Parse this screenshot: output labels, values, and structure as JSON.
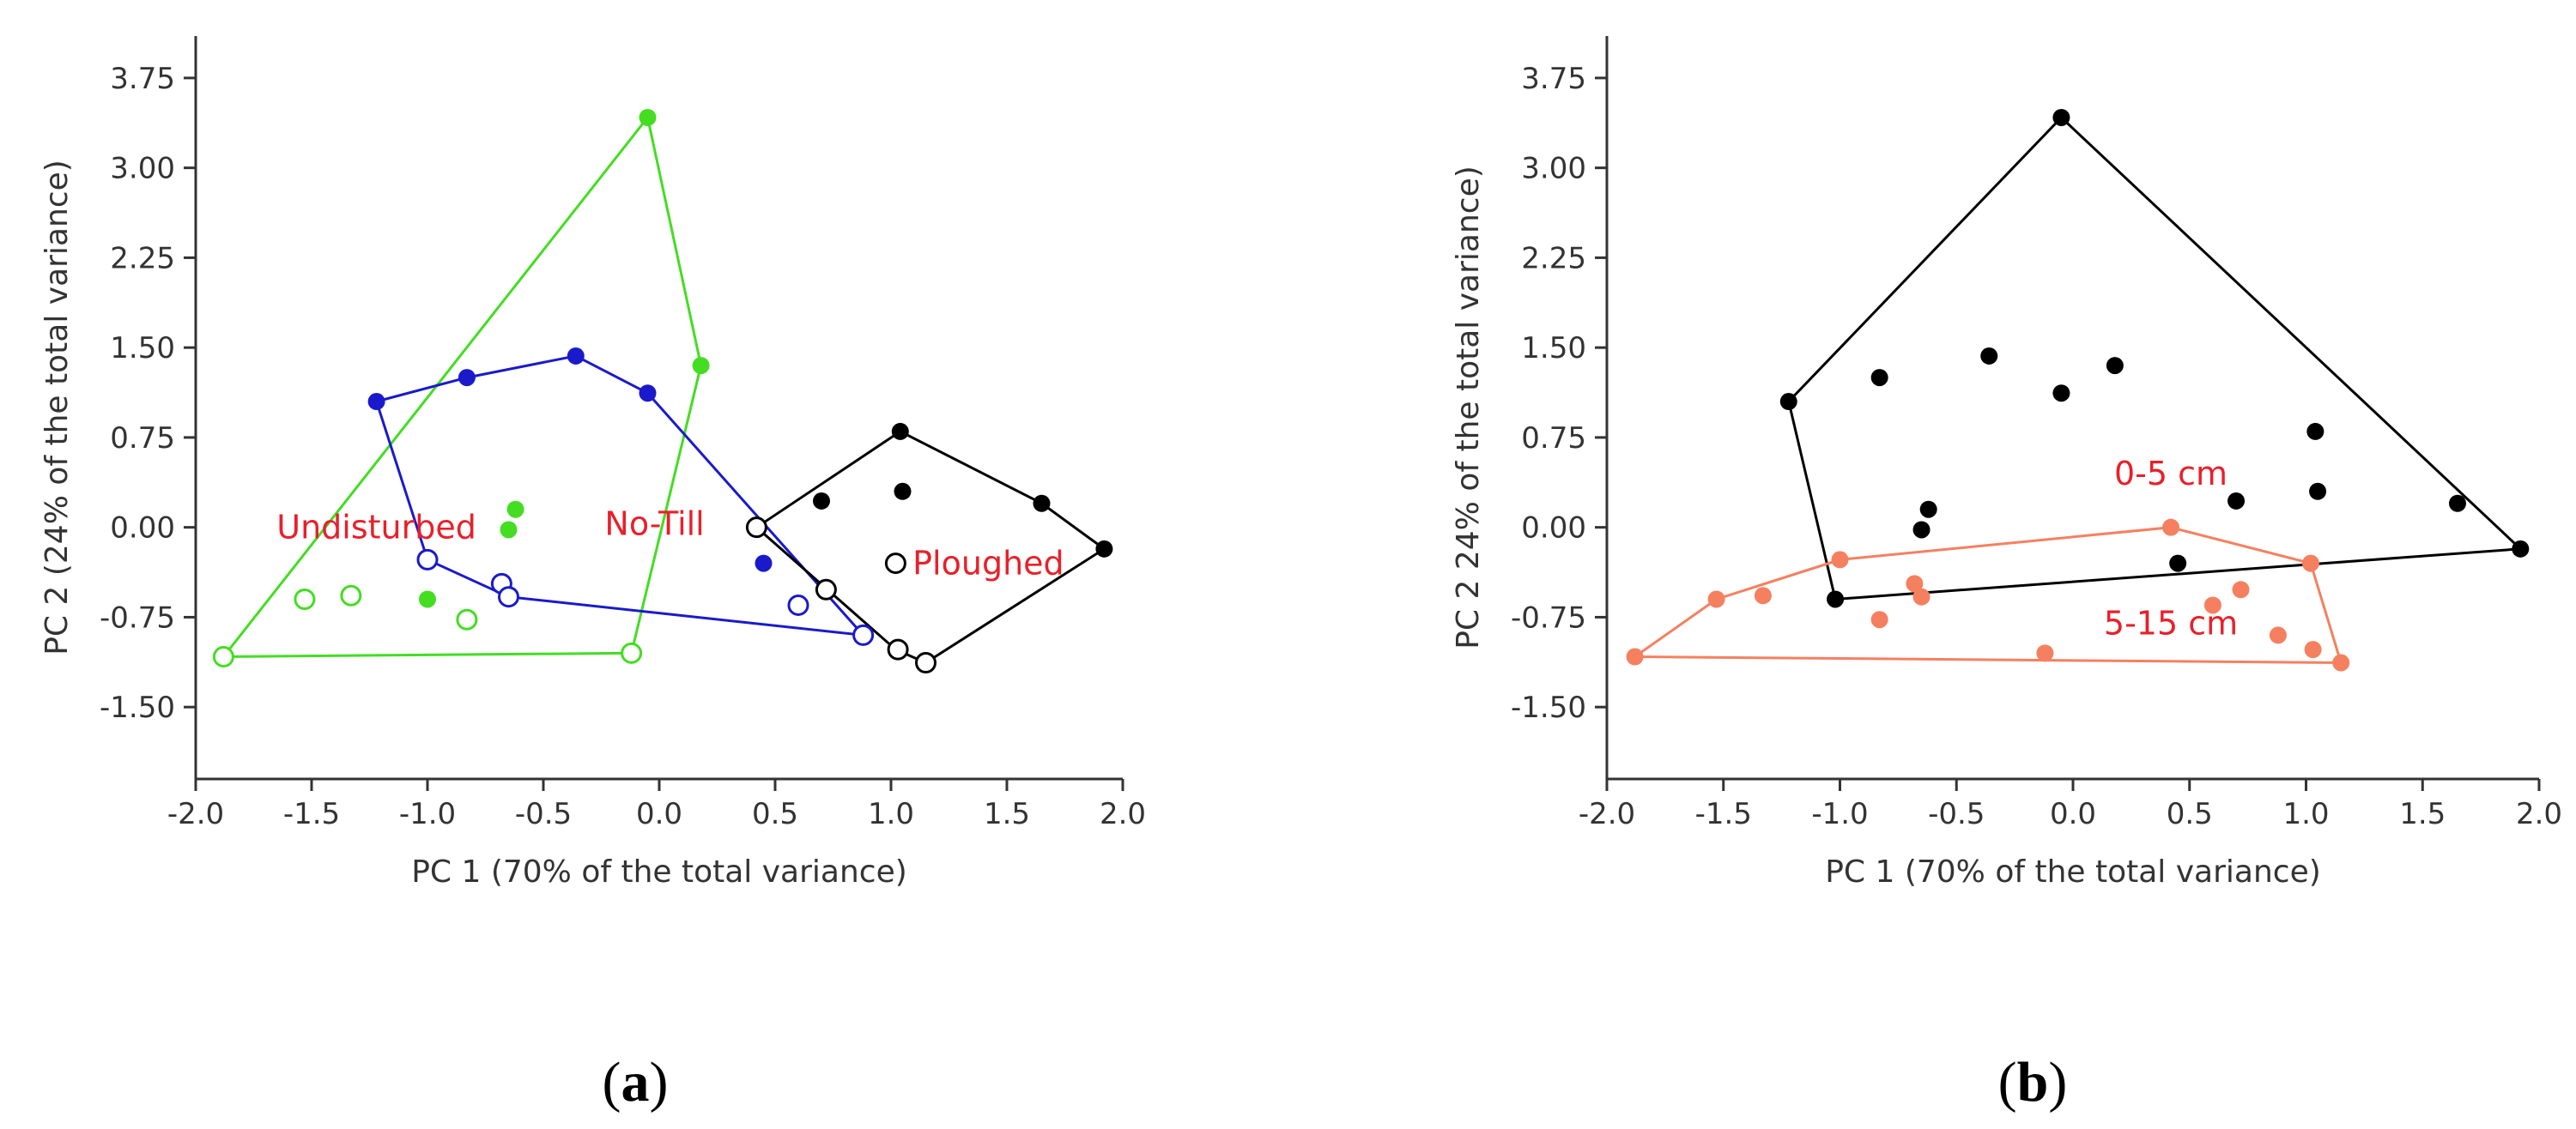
{
  "colors": {
    "undisturbed": "#44DD22",
    "no_till": "#1A1ACC",
    "ploughed": "#000000",
    "depth_0_5": "#000000",
    "depth_5_15": "#F58060",
    "annotation": "#E8202A",
    "axis": "#333333"
  },
  "chart_data": [
    {
      "type": "scatter",
      "panel": "a",
      "panel_label": "a",
      "xlabel": "PC 1 (70% of the total variance)",
      "ylabel": "PC 2 (24% of the total variance)",
      "xlim": [
        -2.0,
        2.0
      ],
      "ylim": [
        -2.1,
        4.1
      ],
      "xticks": [
        -2.0,
        -1.5,
        -1.0,
        -0.5,
        0.0,
        0.5,
        1.0,
        1.5,
        2.0
      ],
      "xtick_labels": [
        "-2.0",
        "-1.5",
        "-1.0",
        "-0.5",
        "0.0",
        "0.5",
        "1.0",
        "1.5",
        "2.0"
      ],
      "yticks": [
        3.75,
        3.0,
        2.25,
        1.5,
        0.75,
        0.0,
        -0.75,
        -1.5
      ],
      "ytick_labels": [
        "3.75",
        "3.00",
        "2.25",
        "1.50",
        "0.75",
        "0.00",
        "-0.75",
        "-1.50"
      ],
      "annotations": [
        {
          "text": "Undisturbed",
          "x": -1.22,
          "y": 0.0
        },
        {
          "text": "No-Till",
          "x": -0.02,
          "y": 0.03
        },
        {
          "text": "Ploughed",
          "x": 1.42,
          "y": -0.3
        }
      ],
      "hulls": [
        {
          "name": "Undisturbed",
          "color_key": "undisturbed",
          "points": [
            [
              -0.05,
              3.42
            ],
            [
              0.18,
              1.35
            ],
            [
              -0.12,
              -1.05
            ],
            [
              -1.88,
              -1.08
            ]
          ]
        },
        {
          "name": "No-Till",
          "color_key": "no_till",
          "points": [
            [
              -1.22,
              1.05
            ],
            [
              -0.83,
              1.25
            ],
            [
              -0.36,
              1.43
            ],
            [
              -0.05,
              1.12
            ],
            [
              0.88,
              -0.9
            ],
            [
              -0.65,
              -0.58
            ],
            [
              -1.0,
              -0.27
            ]
          ]
        },
        {
          "name": "Ploughed",
          "color_key": "ploughed",
          "points": [
            [
              0.42,
              0.0
            ],
            [
              1.04,
              0.8
            ],
            [
              1.65,
              0.2
            ],
            [
              1.92,
              -0.18
            ],
            [
              1.15,
              -1.13
            ],
            [
              1.02,
              -1.02
            ]
          ]
        }
      ],
      "series": [
        {
          "name": "Undisturbed 0-5 cm",
          "color_key": "undisturbed",
          "marker": "filled",
          "x": [
            -0.05,
            0.18,
            -0.62,
            -0.65,
            -1.0
          ],
          "y": [
            3.42,
            1.35,
            0.15,
            -0.02,
            -0.6
          ]
        },
        {
          "name": "Undisturbed 5-15 cm",
          "color_key": "undisturbed",
          "marker": "open",
          "x": [
            -1.88,
            -1.53,
            -1.33,
            -0.83,
            -0.12
          ],
          "y": [
            -1.08,
            -0.6,
            -0.57,
            -0.77,
            -1.05
          ]
        },
        {
          "name": "No-Till 0-5 cm",
          "color_key": "no_till",
          "marker": "filled",
          "x": [
            -1.22,
            -0.83,
            -0.36,
            -0.05,
            0.45
          ],
          "y": [
            1.05,
            1.25,
            1.43,
            1.12,
            -0.3
          ]
        },
        {
          "name": "No-Till 5-15 cm",
          "color_key": "no_till",
          "marker": "open",
          "x": [
            -1.0,
            -0.68,
            -0.65,
            0.6,
            0.88
          ],
          "y": [
            -0.27,
            -0.47,
            -0.58,
            -0.65,
            -0.9
          ]
        },
        {
          "name": "Ploughed 0-5 cm",
          "color_key": "ploughed",
          "marker": "filled",
          "x": [
            0.7,
            1.04,
            1.05,
            1.65,
            1.92
          ],
          "y": [
            0.22,
            0.8,
            0.3,
            0.2,
            -0.18
          ]
        },
        {
          "name": "Ploughed 5-15 cm",
          "color_key": "ploughed",
          "marker": "open",
          "x": [
            0.42,
            0.72,
            1.02,
            1.03,
            1.15
          ],
          "y": [
            0.0,
            -0.52,
            -0.3,
            -1.02,
            -1.13
          ]
        }
      ]
    },
    {
      "type": "scatter",
      "panel": "b",
      "panel_label": "b",
      "xlabel": "PC 1 (70% of the total variance)",
      "ylabel": "PC 2 24% of the total variance)",
      "xlim": [
        -2.0,
        2.0
      ],
      "ylim": [
        -2.1,
        4.1
      ],
      "xticks": [
        -2.0,
        -1.5,
        -1.0,
        -0.5,
        0.0,
        0.5,
        1.0,
        1.5,
        2.0
      ],
      "xtick_labels": [
        "-2.0",
        "-1.5",
        "-1.0",
        "-0.5",
        "0.0",
        "0.5",
        "1.0",
        "1.5",
        "2.0"
      ],
      "yticks": [
        3.75,
        3.0,
        2.25,
        1.5,
        0.75,
        0.0,
        -0.75,
        -1.5
      ],
      "ytick_labels": [
        "3.75",
        "3.00",
        "2.25",
        "1.50",
        "0.75",
        "0.00",
        "-0.75",
        "-1.50"
      ],
      "annotations": [
        {
          "text": "0-5 cm",
          "x": 0.42,
          "y": 0.45
        },
        {
          "text": "5-15 cm",
          "x": 0.42,
          "y": -0.8
        }
      ],
      "hulls": [
        {
          "name": "0-5 cm",
          "color_key": "depth_0_5",
          "points": [
            [
              -0.05,
              3.42
            ],
            [
              1.92,
              -0.18
            ],
            [
              -1.02,
              -0.6
            ],
            [
              -1.22,
              1.05
            ]
          ]
        },
        {
          "name": "5-15 cm",
          "color_key": "depth_5_15",
          "points": [
            [
              0.42,
              0.0
            ],
            [
              1.02,
              -0.3
            ],
            [
              1.15,
              -1.13
            ],
            [
              -1.88,
              -1.08
            ],
            [
              -1.53,
              -0.6
            ],
            [
              -1.0,
              -0.27
            ]
          ]
        }
      ],
      "series": [
        {
          "name": "0-5 cm",
          "color_key": "depth_0_5",
          "marker": "filled",
          "x": [
            -0.05,
            -1.22,
            -0.83,
            -0.36,
            -0.05,
            0.18,
            1.04,
            1.05,
            1.65,
            1.92,
            0.7,
            -0.62,
            -0.65,
            0.45,
            -1.02
          ],
          "y": [
            3.42,
            1.05,
            1.25,
            1.43,
            1.12,
            1.35,
            0.8,
            0.3,
            0.2,
            -0.18,
            0.22,
            0.15,
            -0.02,
            -0.3,
            -0.6
          ]
        },
        {
          "name": "5-15 cm",
          "color_key": "depth_5_15",
          "marker": "filled",
          "x": [
            0.42,
            -1.0,
            -1.53,
            -1.33,
            -0.68,
            -0.65,
            -0.83,
            -1.88,
            -0.12,
            0.6,
            0.72,
            0.88,
            1.02,
            1.03,
            1.15
          ],
          "y": [
            0.0,
            -0.27,
            -0.6,
            -0.57,
            -0.47,
            -0.58,
            -0.77,
            -1.08,
            -1.05,
            -0.65,
            -0.52,
            -0.9,
            -0.3,
            -1.02,
            -1.13
          ]
        }
      ]
    }
  ]
}
